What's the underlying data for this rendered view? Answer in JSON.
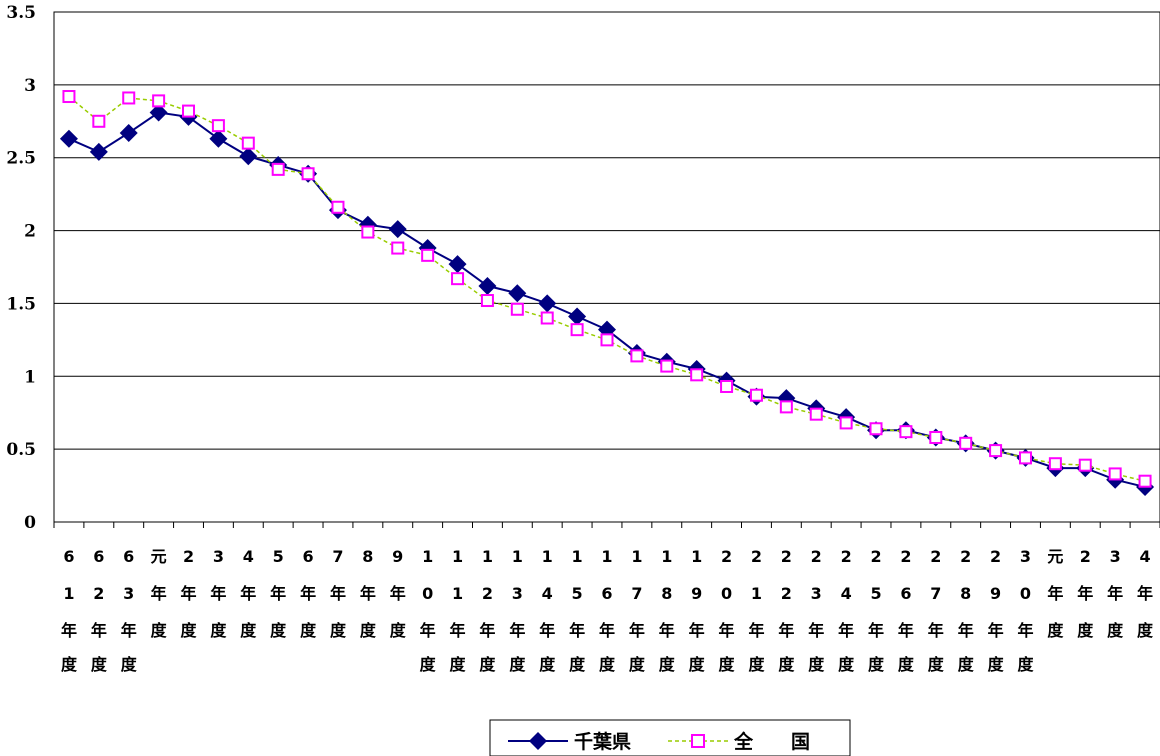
{
  "chart_data": {
    "type": "line",
    "title": "",
    "xlabel": "",
    "ylabel": "",
    "ylim": [
      0,
      3.5
    ],
    "yticks": [
      "0",
      "0.5",
      "1",
      "1.5",
      "2",
      "2.5",
      "3",
      "3.5"
    ],
    "grid": true,
    "legend_position": "bottom-center",
    "categories": [
      "61年度",
      "62年度",
      "63年度",
      "元年度",
      "2年度",
      "3年度",
      "4年度",
      "5年度",
      "6年度",
      "7年度",
      "8年度",
      "9年度",
      "10年度",
      "11年度",
      "12年度",
      "13年度",
      "14年度",
      "15年度",
      "16年度",
      "17年度",
      "18年度",
      "19年度",
      "20年度",
      "21年度",
      "22年度",
      "23年度",
      "24年度",
      "25年度",
      "26年度",
      "27年度",
      "28年度",
      "29年度",
      "30年度",
      "元年度",
      "2年度",
      "3年度",
      "4年度"
    ],
    "series": [
      {
        "name": "千葉県",
        "color": "#000080",
        "marker": "filled-diamond",
        "line": "solid",
        "values": [
          2.63,
          2.54,
          2.67,
          2.81,
          2.78,
          2.63,
          2.51,
          2.45,
          2.39,
          2.14,
          2.04,
          2.01,
          1.88,
          1.77,
          1.62,
          1.57,
          1.5,
          1.41,
          1.32,
          1.16,
          1.1,
          1.05,
          0.97,
          0.86,
          0.85,
          0.78,
          0.72,
          0.63,
          0.63,
          0.58,
          0.54,
          0.49,
          0.44,
          0.37,
          0.37,
          0.29,
          0.24
        ]
      },
      {
        "name": "全　　国",
        "color": "#ff00ff",
        "line_color": "#99cc00",
        "marker": "hollow-square",
        "line": "dashed",
        "values": [
          2.92,
          2.75,
          2.91,
          2.89,
          2.82,
          2.72,
          2.6,
          2.42,
          2.39,
          2.16,
          1.99,
          1.88,
          1.83,
          1.67,
          1.52,
          1.46,
          1.4,
          1.32,
          1.25,
          1.14,
          1.07,
          1.01,
          0.93,
          0.87,
          0.79,
          0.74,
          0.68,
          0.64,
          0.62,
          0.58,
          0.54,
          0.49,
          0.44,
          0.4,
          0.39,
          0.33,
          0.28
        ]
      }
    ]
  }
}
